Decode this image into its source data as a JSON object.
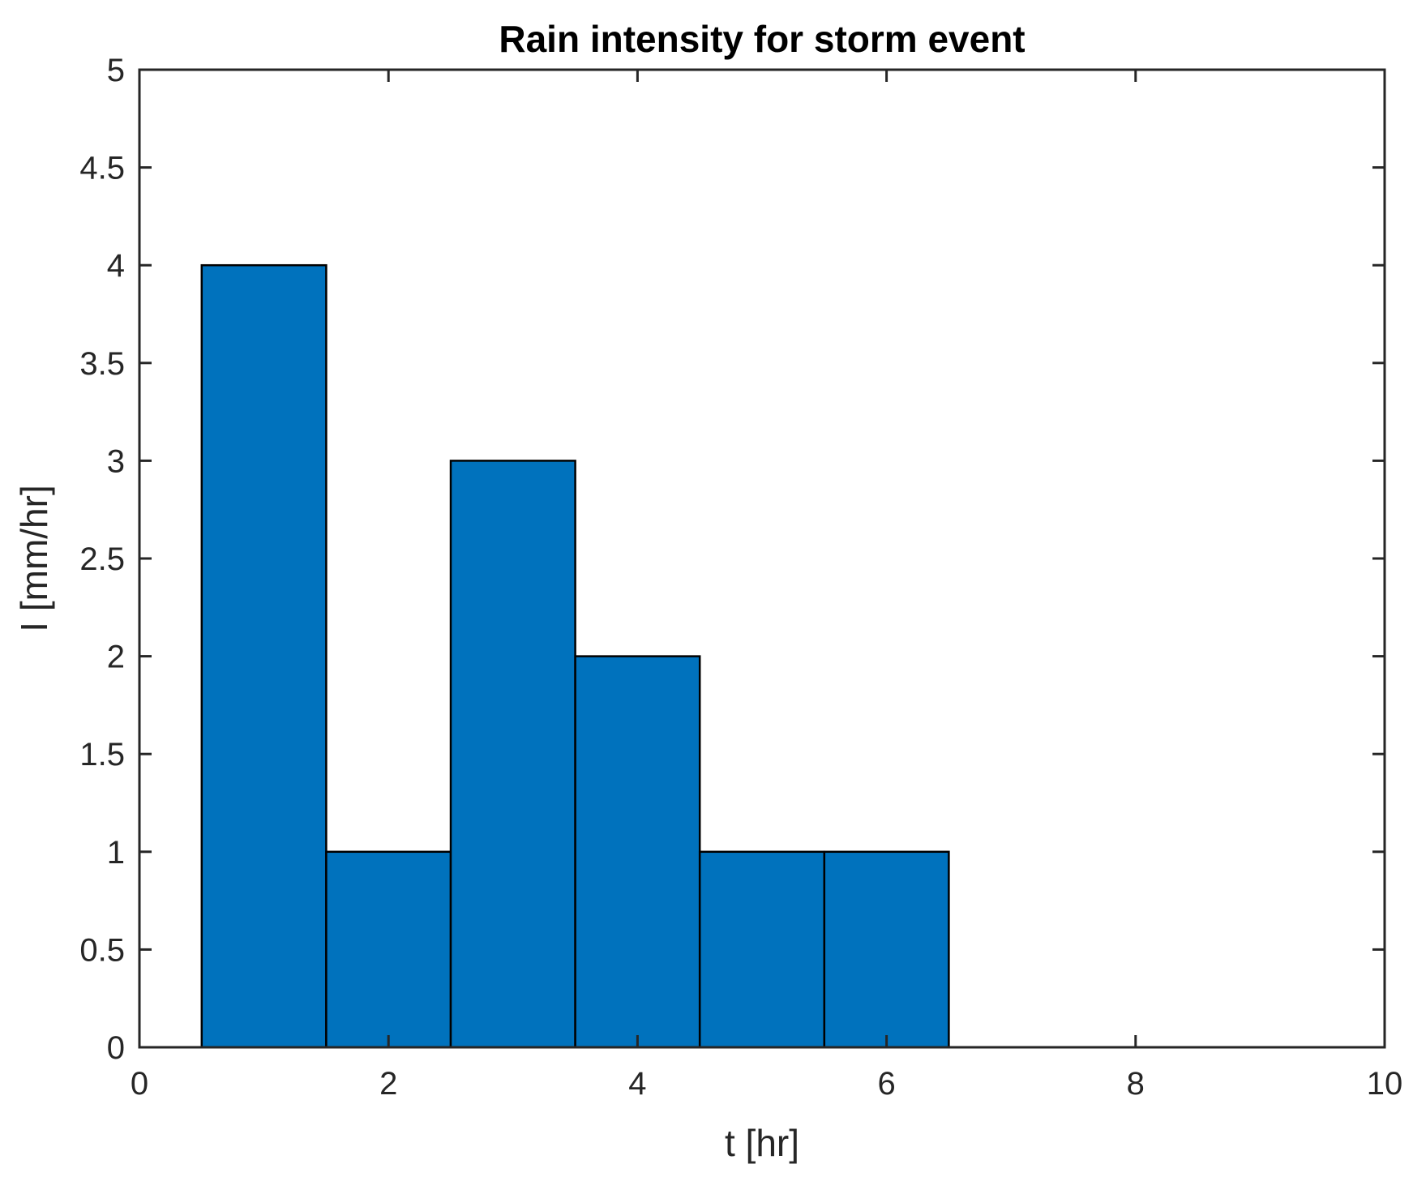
{
  "chart_data": {
    "type": "bar",
    "title": "Rain intensity for storm event",
    "xlabel": "t [hr]",
    "ylabel": "I [mm/hr]",
    "x": [
      1,
      2,
      3,
      4,
      5,
      6
    ],
    "values": [
      4,
      1,
      3,
      2,
      1,
      1
    ],
    "bar_width": 1,
    "xlim": [
      0,
      10
    ],
    "ylim": [
      0,
      5
    ],
    "xticks": [
      0,
      2,
      4,
      6,
      8,
      10
    ],
    "yticks": [
      0,
      0.5,
      1,
      1.5,
      2,
      2.5,
      3,
      3.5,
      4,
      4.5,
      5
    ],
    "xtick_labels": [
      "0",
      "2",
      "4",
      "6",
      "8",
      "10"
    ],
    "ytick_labels": [
      "0",
      "0.5",
      "1",
      "1.5",
      "2",
      "2.5",
      "3",
      "3.5",
      "4",
      "4.5",
      "5"
    ],
    "grid": false,
    "legend": "none",
    "colors": {
      "bar_fill": "#0072BD",
      "bar_edge": "#000000",
      "axes": "#262626",
      "background": "#ffffff"
    }
  }
}
